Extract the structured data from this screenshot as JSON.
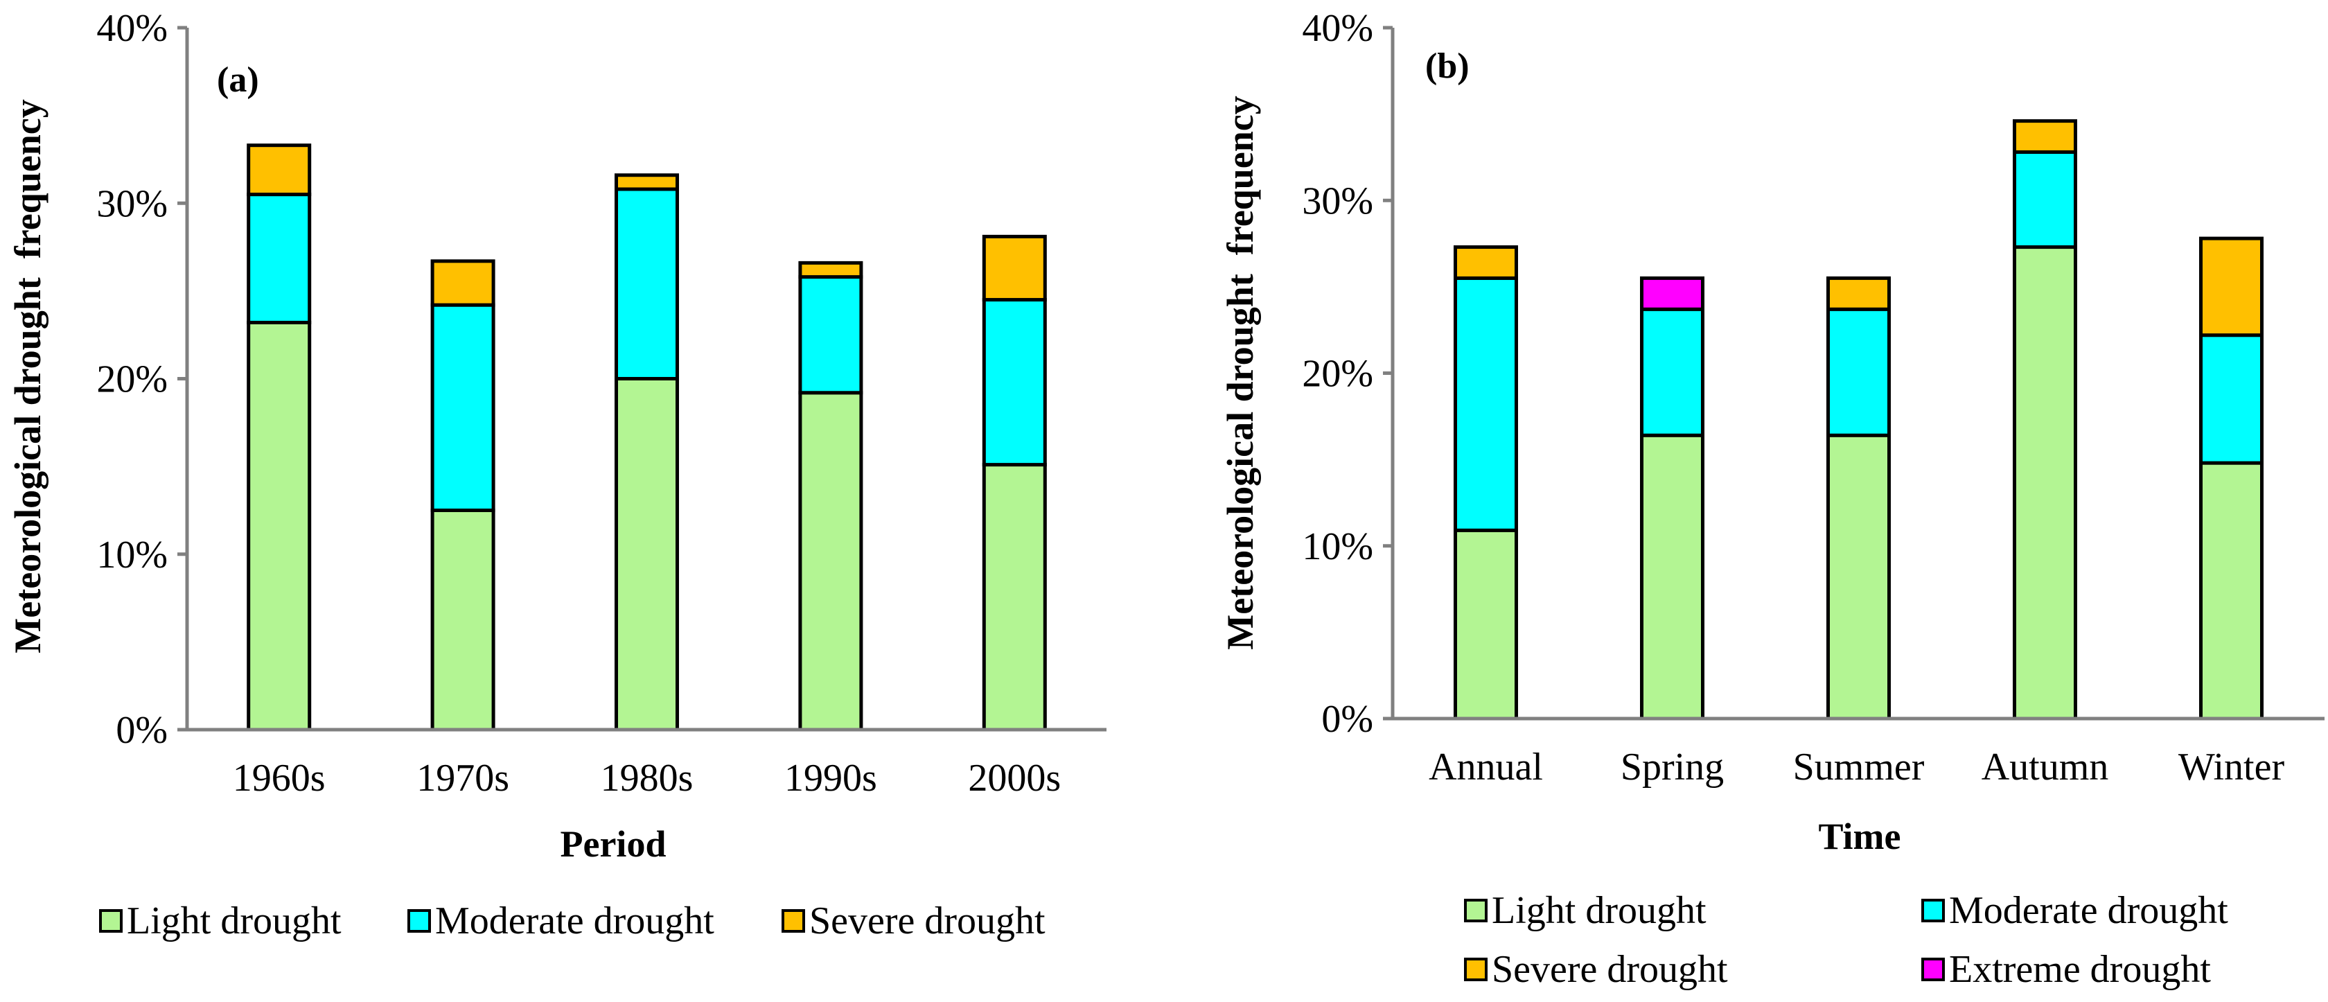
{
  "colors": {
    "light": "#b3f593",
    "moderate": "#00ffff",
    "severe": "#ffc000",
    "extreme": "#ff00ff"
  },
  "chart_data": [
    {
      "type": "bar",
      "stacked": true,
      "panel": "(a)",
      "title": "",
      "xlabel": "Period",
      "ylabel": "Meteorological drought  frequency",
      "ylim": [
        0,
        40
      ],
      "yticks": [
        "0%",
        "10%",
        "20%",
        "30%",
        "40%"
      ],
      "categories": [
        "1960s",
        "1970s",
        "1980s",
        "1990s",
        "2000s"
      ],
      "series": [
        {
          "name": "Light drought",
          "key": "light",
          "values": [
            23.2,
            12.5,
            20.0,
            19.2,
            15.1
          ]
        },
        {
          "name": "Moderate drought",
          "key": "moderate",
          "values": [
            7.3,
            11.7,
            10.8,
            6.6,
            9.4
          ]
        },
        {
          "name": "Severe drought",
          "key": "severe",
          "values": [
            2.8,
            2.5,
            0.8,
            0.8,
            3.6
          ]
        }
      ],
      "legend": [
        "Light drought",
        "Moderate drought",
        "Severe drought"
      ],
      "legend_position": "bottom"
    },
    {
      "type": "bar",
      "stacked": true,
      "panel": "(b)",
      "title": "",
      "xlabel": "Time",
      "ylabel": "Meteorological drought  frequency",
      "ylim": [
        0,
        40
      ],
      "yticks": [
        "0%",
        "10%",
        "20%",
        "30%",
        "40%"
      ],
      "categories": [
        "Annual",
        "Spring",
        "Summer",
        "Autumn",
        "Winter"
      ],
      "series": [
        {
          "name": "Light drought",
          "key": "light",
          "values": [
            10.9,
            16.4,
            16.4,
            27.3,
            14.8
          ]
        },
        {
          "name": "Moderate drought",
          "key": "moderate",
          "values": [
            14.6,
            7.3,
            7.3,
            5.5,
            7.4
          ]
        },
        {
          "name": "Severe drought",
          "key": "severe",
          "values": [
            1.8,
            0,
            1.8,
            1.8,
            5.6
          ]
        },
        {
          "name": "Extreme drought",
          "key": "extreme",
          "values": [
            0,
            1.8,
            0,
            0,
            0
          ]
        }
      ],
      "legend": [
        "Light drought",
        "Moderate drought",
        "Severe drought",
        "Extreme drought"
      ],
      "legend_position": "bottom"
    }
  ]
}
